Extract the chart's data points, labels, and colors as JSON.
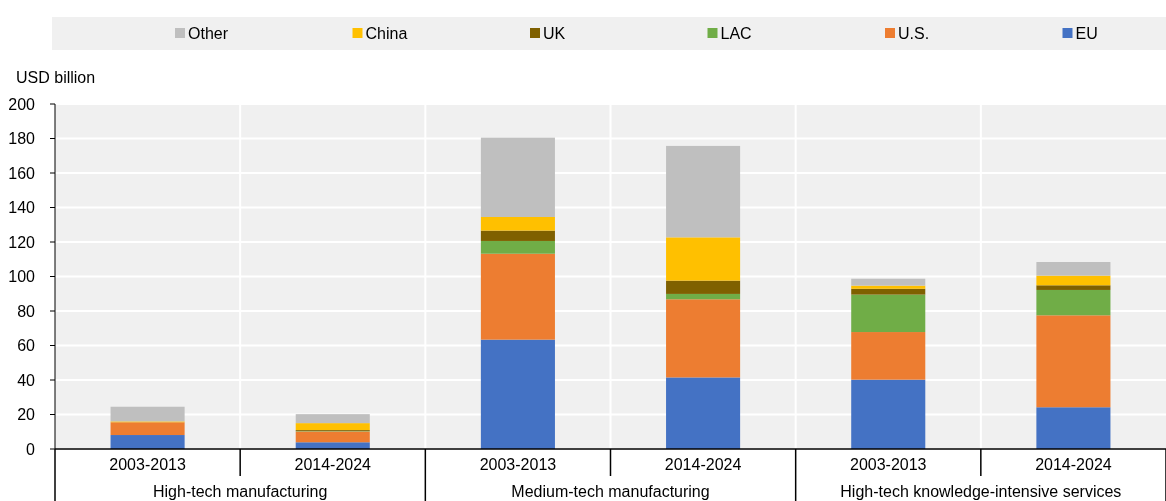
{
  "chart_data": {
    "type": "bar",
    "stacked": true,
    "ylabel": "USD billion",
    "categories": [
      "2003-2013",
      "2014-2024",
      "2003-2013",
      "2014-2024",
      "2003-2013",
      "2014-2024"
    ],
    "annotations": [
      "High-tech manufacturing",
      "Medium-tech manufacturing",
      "High-tech knowledge-intensive services"
    ],
    "series": [
      {
        "name": "EU",
        "color": "#4472c4",
        "values": [
          8.1,
          3.9,
          63.4,
          41.5,
          40.2,
          24.2
        ]
      },
      {
        "name": "U.S.",
        "color": "#ed7d31",
        "values": [
          7.4,
          6.3,
          49.8,
          45.3,
          27.6,
          53.3
        ]
      },
      {
        "name": "LAC",
        "color": "#70ad47",
        "values": [
          0,
          0.3,
          7.4,
          3.1,
          21.7,
          14.7
        ]
      },
      {
        "name": "UK",
        "color": "#7f6000",
        "values": [
          0,
          0.5,
          6.0,
          7.7,
          3.4,
          2.7
        ]
      },
      {
        "name": "China",
        "color": "#ffc000",
        "values": [
          0.5,
          4.0,
          7.9,
          25.1,
          1.8,
          5.6
        ]
      },
      {
        "name": "Other",
        "color": "#bfbfbf",
        "values": [
          8.5,
          5.2,
          46.0,
          53.0,
          4.0,
          7.9
        ]
      }
    ],
    "ylim": [
      0,
      200
    ],
    "yticks": [
      0,
      20,
      40,
      60,
      80,
      100,
      120,
      140,
      160,
      180,
      200
    ],
    "grid": true,
    "legend": "top"
  }
}
